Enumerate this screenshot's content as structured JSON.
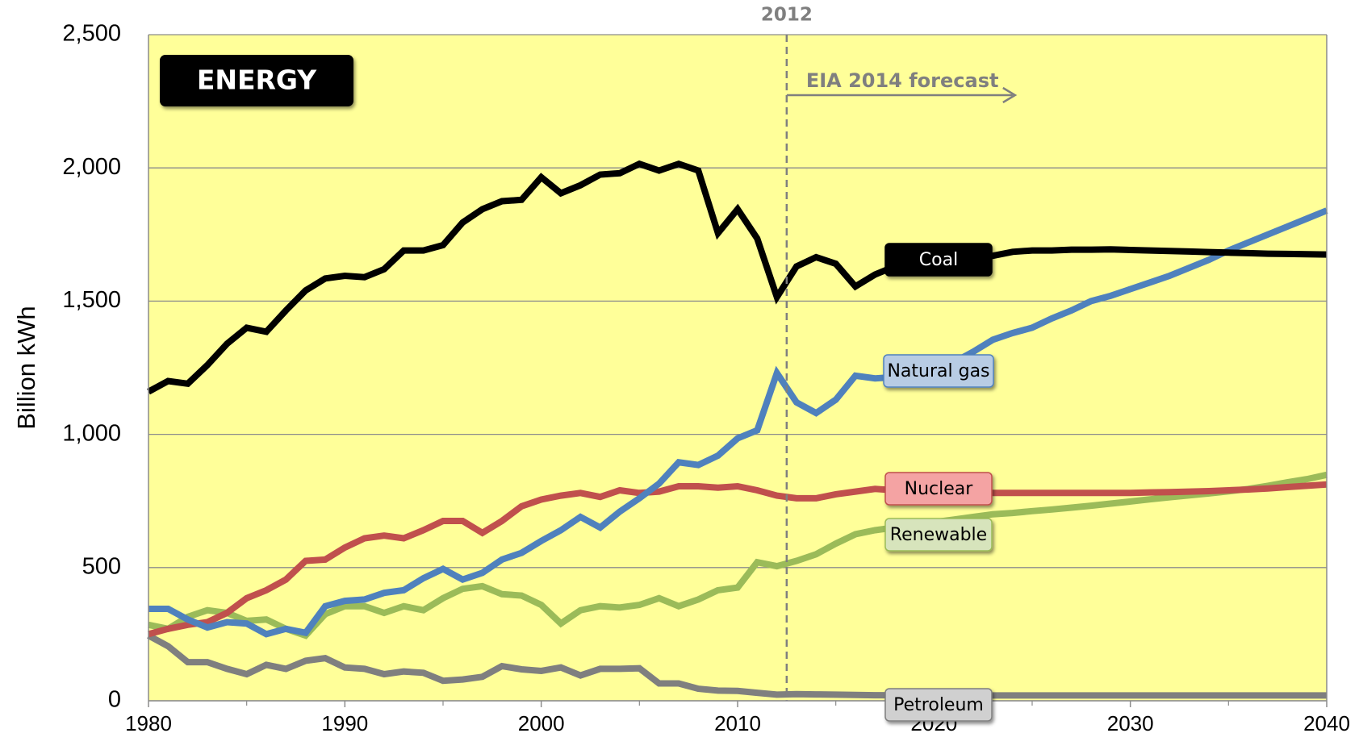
{
  "chart_data": {
    "type": "line",
    "badge": "ENERGY",
    "y_label": "Billion kWh",
    "annotations": [
      {
        "label": "2012",
        "x": 2012.5
      },
      {
        "label": "EIA 2014 forecast"
      }
    ],
    "x": [
      1980,
      1981,
      1982,
      1983,
      1984,
      1985,
      1986,
      1987,
      1988,
      1989,
      1990,
      1991,
      1992,
      1993,
      1994,
      1995,
      1996,
      1997,
      1998,
      1999,
      2000,
      2001,
      2002,
      2003,
      2004,
      2005,
      2006,
      2007,
      2008,
      2009,
      2010,
      2011,
      2012,
      2013,
      2014,
      2015,
      2016,
      2017,
      2018,
      2019,
      2020,
      2021,
      2022,
      2023,
      2024,
      2025,
      2026,
      2027,
      2028,
      2029,
      2030,
      2031,
      2032,
      2033,
      2034,
      2035,
      2036,
      2037,
      2038,
      2039,
      2040
    ],
    "xlim": [
      1980,
      2040
    ],
    "xticks": [
      1980,
      1990,
      2000,
      2010,
      2020,
      2030,
      2040
    ],
    "ylim": [
      0,
      2500
    ],
    "yticks": [
      0,
      500,
      {
        "value": 1000,
        "label": "1,000"
      },
      {
        "value": 1500,
        "label": "1,500"
      },
      {
        "value": 2000,
        "label": "2,000"
      },
      {
        "value": 2500,
        "label": "2,500"
      }
    ],
    "grid": true,
    "series": [
      {
        "name": "Coal",
        "color": "#000000",
        "values": [
          1160,
          1200,
          1190,
          1260,
          1340,
          1400,
          1385,
          1465,
          1540,
          1585,
          1595,
          1590,
          1620,
          1690,
          1690,
          1710,
          1795,
          1845,
          1875,
          1880,
          1965,
          1905,
          1935,
          1975,
          1980,
          2015,
          1990,
          2015,
          1990,
          1755,
          1845,
          1735,
          1515,
          1630,
          1665,
          1640,
          1555,
          1600,
          1630,
          1640,
          1650,
          1655,
          1660,
          1670,
          1685,
          1690,
          1690,
          1693,
          1693,
          1694,
          1692,
          1690,
          1688,
          1686,
          1684,
          1682,
          1680,
          1678,
          1677,
          1676,
          1675
        ]
      },
      {
        "name": "Natural gas",
        "color": "#4f81bd",
        "values": [
          345,
          345,
          305,
          275,
          295,
          290,
          250,
          270,
          255,
          355,
          375,
          380,
          405,
          415,
          460,
          495,
          455,
          480,
          530,
          555,
          600,
          640,
          690,
          650,
          710,
          760,
          815,
          895,
          885,
          920,
          985,
          1015,
          1230,
          1120,
          1080,
          1130,
          1220,
          1210,
          1215,
          1230,
          1250,
          1270,
          1310,
          1355,
          1380,
          1400,
          1435,
          1465,
          1500,
          1520,
          1545,
          1570,
          1595,
          1625,
          1655,
          1690,
          1720,
          1750,
          1780,
          1810,
          1840
        ]
      },
      {
        "name": "Nuclear",
        "color": "#c0504d",
        "values": [
          250,
          270,
          285,
          295,
          330,
          385,
          415,
          455,
          525,
          530,
          575,
          610,
          620,
          610,
          640,
          675,
          675,
          630,
          675,
          730,
          755,
          770,
          780,
          765,
          790,
          780,
          785,
          805,
          805,
          800,
          805,
          790,
          770,
          760,
          760,
          775,
          785,
          795,
          790,
          785,
          785,
          780,
          780,
          780,
          780,
          780,
          780,
          780,
          780,
          780,
          780,
          782,
          783,
          785,
          787,
          790,
          793,
          797,
          802,
          807,
          812
        ]
      },
      {
        "name": "Renewable",
        "color": "#9bbb59",
        "values": [
          285,
          270,
          315,
          340,
          330,
          300,
          305,
          270,
          245,
          325,
          355,
          355,
          330,
          355,
          340,
          385,
          420,
          430,
          400,
          395,
          360,
          290,
          340,
          355,
          350,
          360,
          385,
          355,
          380,
          415,
          425,
          520,
          505,
          525,
          550,
          590,
          625,
          640,
          650,
          660,
          670,
          680,
          690,
          700,
          705,
          712,
          718,
          725,
          732,
          740,
          748,
          756,
          764,
          771,
          778,
          786,
          795,
          807,
          820,
          832,
          848
        ]
      },
      {
        "name": "Petroleum",
        "color": "#7f7f7f",
        "values": [
          245,
          205,
          145,
          145,
          120,
          100,
          135,
          120,
          150,
          160,
          125,
          120,
          100,
          110,
          105,
          75,
          80,
          90,
          130,
          118,
          112,
          125,
          95,
          120,
          120,
          122,
          65,
          65,
          45,
          38,
          37,
          30,
          23,
          25,
          24,
          23,
          22,
          21,
          21,
          21,
          21,
          20,
          20,
          20,
          20,
          20,
          20,
          20,
          20,
          20,
          20,
          20,
          20,
          20,
          20,
          20,
          20,
          20,
          20,
          20,
          20
        ]
      }
    ]
  }
}
